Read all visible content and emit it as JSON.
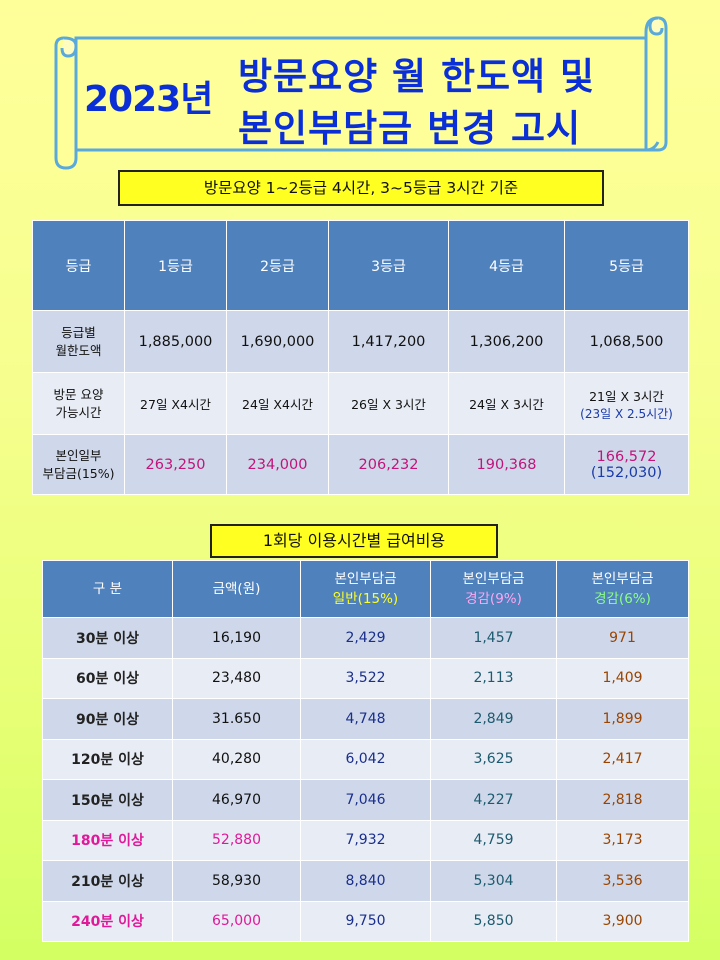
{
  "banner": {
    "year": "2023년",
    "line1": "방문요양 월 한도액  및",
    "line2": "본인부담금 변경 고시"
  },
  "note1": "방문요양 1~2등급 4시간,   3~5등급 3시간 기준",
  "table1": {
    "header": [
      "등급",
      "1등급",
      "2등급",
      "3등급",
      "4등급",
      "5등급"
    ],
    "limit_row": {
      "label1": "등급별",
      "label2": "월한도액",
      "values": [
        "1,885,000",
        "1,690,000",
        "1,417,200",
        "1,306,200",
        "1,068,500"
      ]
    },
    "hours_row": {
      "label1": "방문 요양",
      "label2": "가능시간",
      "values": [
        "27일 X4시간",
        "24일 X4시간",
        "26일 X 3시간",
        "24일 X 3시간",
        "21일 X 3시간"
      ],
      "extra": "(23일 X 2.5시간)"
    },
    "copay_row": {
      "label1": "본인일부",
      "label2": "부담금(15%)",
      "values": [
        "263,250",
        "234,000",
        "206,232",
        "190,368",
        "166,572"
      ],
      "extra": "(152,030)"
    }
  },
  "note2": "1회당 이용시간별 급여비용",
  "table2": {
    "header": {
      "category": "구 분",
      "amount": "금액(원)",
      "copay_label": "본인부담금",
      "general": "일반(15%)",
      "reduced9": "경감(9%)",
      "reduced6": "경감(6%)"
    },
    "rows": [
      {
        "label": "30분 이상",
        "amount": "16,190",
        "general": "2,429",
        "reduced9": "1,457",
        "reduced6": "971"
      },
      {
        "label": "60분 이상",
        "amount": "23,480",
        "general": "3,522",
        "reduced9": "2,113",
        "reduced6": "1,409"
      },
      {
        "label": "90분 이상",
        "amount": "31.650",
        "general": "4,748",
        "reduced9": "2,849",
        "reduced6": "1,899"
      },
      {
        "label": "120분 이상",
        "amount": "40,280",
        "general": "6,042",
        "reduced9": "3,625",
        "reduced6": "2,417"
      },
      {
        "label": "150분 이상",
        "amount": "46,970",
        "general": "7,046",
        "reduced9": "4,227",
        "reduced6": "2,818"
      },
      {
        "label": "180분 이상",
        "amount": "52,880",
        "general": "7,932",
        "reduced9": "4,759",
        "reduced6": "3,173"
      },
      {
        "label": "210분 이상",
        "amount": "58,930",
        "general": "8,840",
        "reduced9": "5,304",
        "reduced6": "3,536"
      },
      {
        "label": "240분 이상",
        "amount": "65,000",
        "general": "9,750",
        "reduced9": "5,850",
        "reduced6": "3,900"
      }
    ]
  },
  "colors": {
    "title": "#0b2fd6",
    "header_bg": "#4f81bd",
    "highlight_pink": "#e0199a",
    "label_yellow": "#ffff22"
  }
}
